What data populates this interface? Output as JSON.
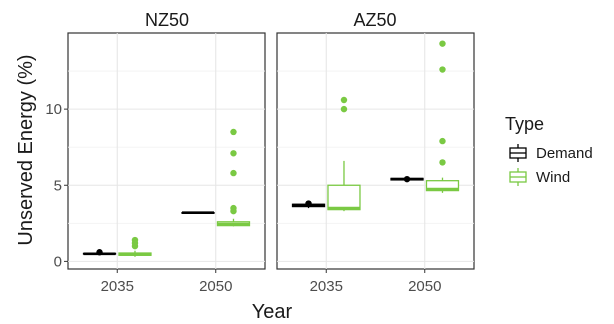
{
  "chart_data": {
    "type": "boxplot",
    "xlabel": "Year",
    "ylabel": "Unserved Energy (%)",
    "ylim": [
      -0.5,
      15
    ],
    "yticks": [
      0,
      5,
      10
    ],
    "categories": [
      "2035",
      "2050"
    ],
    "panels": [
      {
        "title": "NZ50",
        "boxes": [
          {
            "category": "2035",
            "type": "Demand",
            "min": 0.5,
            "q1": 0.5,
            "median": 0.5,
            "q3": 0.52,
            "max": 0.55,
            "outliers": [
              0.6
            ]
          },
          {
            "category": "2035",
            "type": "Wind",
            "min": 0.3,
            "q1": 0.4,
            "median": 0.45,
            "q3": 0.55,
            "max": 0.7,
            "outliers": [
              1.0,
              1.2,
              1.4
            ]
          },
          {
            "category": "2050",
            "type": "Demand",
            "min": 3.2,
            "q1": 3.2,
            "median": 3.2,
            "q3": 3.2,
            "max": 3.2,
            "outliers": []
          },
          {
            "category": "2050",
            "type": "Wind",
            "min": 2.3,
            "q1": 2.35,
            "median": 2.45,
            "q3": 2.6,
            "max": 2.8,
            "outliers": [
              3.3,
              3.5,
              5.8,
              7.1,
              8.5
            ]
          }
        ]
      },
      {
        "title": "AZ50",
        "boxes": [
          {
            "category": "2035",
            "type": "Demand",
            "min": 3.5,
            "q1": 3.6,
            "median": 3.7,
            "q3": 3.75,
            "max": 3.9,
            "outliers": [
              3.8
            ]
          },
          {
            "category": "2035",
            "type": "Wind",
            "min": 3.3,
            "q1": 3.4,
            "median": 3.5,
            "q3": 5.0,
            "max": 6.6,
            "outliers": [
              10.0,
              10.6
            ]
          },
          {
            "category": "2050",
            "type": "Demand",
            "min": 5.3,
            "q1": 5.35,
            "median": 5.4,
            "q3": 5.45,
            "max": 5.5,
            "outliers": [
              5.4
            ]
          },
          {
            "category": "2050",
            "type": "Wind",
            "min": 4.5,
            "q1": 4.65,
            "median": 4.75,
            "q3": 5.3,
            "max": 5.5,
            "outliers": [
              6.5,
              7.9,
              12.6,
              14.3
            ]
          }
        ]
      }
    ],
    "legend": {
      "title": "Type",
      "placement": "right",
      "entries": [
        {
          "name": "Demand",
          "color": "#000000"
        },
        {
          "name": "Wind",
          "color": "#7ac943"
        }
      ]
    },
    "grid": true
  }
}
